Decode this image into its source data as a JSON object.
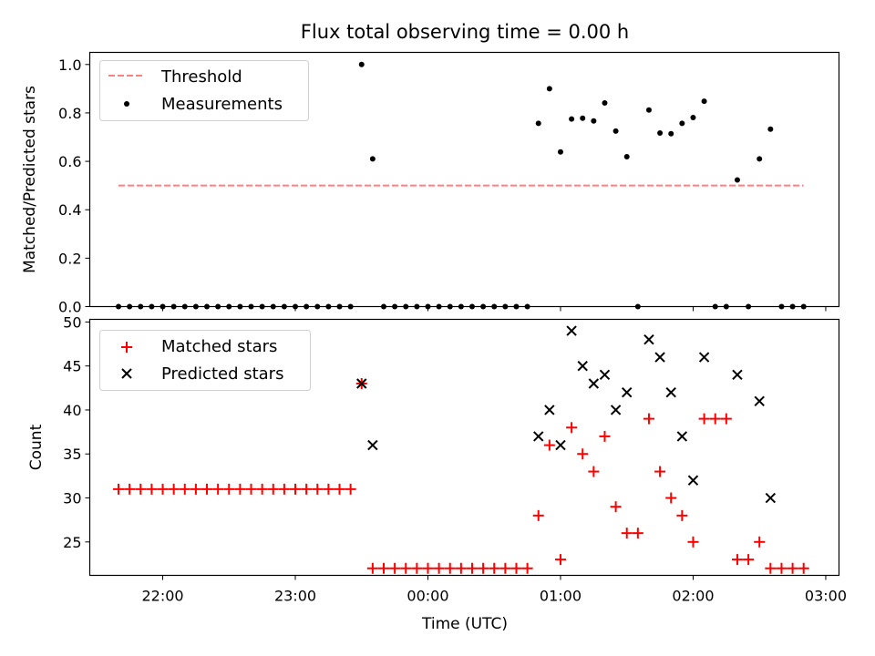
{
  "figure": {
    "title": "Flux total observing time = 0.00 h",
    "xlabel": "Time (UTC)"
  },
  "chart_data": [
    {
      "type": "scatter",
      "ylabel": "Matched/Predicted stars",
      "ylim": [
        0,
        1.05
      ],
      "yticks": [
        "0.0",
        "0.2",
        "0.4",
        "0.6",
        "0.8",
        "1.0"
      ],
      "legend": {
        "position": "top-left",
        "entries": [
          "Threshold",
          "Measurements"
        ]
      },
      "threshold": {
        "name": "Threshold",
        "y": 0.5,
        "x_start": "21:40",
        "x_end": "02:50",
        "color": "#ff7f7f"
      },
      "series": [
        {
          "name": "Measurements",
          "color": "#000000",
          "points": [
            [
              "21:40",
              0
            ],
            [
              "21:45",
              0
            ],
            [
              "21:50",
              0
            ],
            [
              "21:55",
              0
            ],
            [
              "22:00",
              0
            ],
            [
              "22:05",
              0
            ],
            [
              "22:10",
              0
            ],
            [
              "22:15",
              0
            ],
            [
              "22:20",
              0
            ],
            [
              "22:25",
              0
            ],
            [
              "22:30",
              0
            ],
            [
              "22:35",
              0
            ],
            [
              "22:40",
              0
            ],
            [
              "22:45",
              0
            ],
            [
              "22:50",
              0
            ],
            [
              "22:55",
              0
            ],
            [
              "23:00",
              0
            ],
            [
              "23:05",
              0
            ],
            [
              "23:10",
              0
            ],
            [
              "23:15",
              0
            ],
            [
              "23:20",
              0
            ],
            [
              "23:25",
              0
            ],
            [
              "23:30",
              1.0
            ],
            [
              "23:35",
              0.61
            ],
            [
              "23:40",
              0
            ],
            [
              "23:45",
              0
            ],
            [
              "23:50",
              0
            ],
            [
              "23:55",
              0
            ],
            [
              "00:00",
              0
            ],
            [
              "00:05",
              0
            ],
            [
              "00:10",
              0
            ],
            [
              "00:15",
              0
            ],
            [
              "00:20",
              0
            ],
            [
              "00:25",
              0
            ],
            [
              "00:30",
              0
            ],
            [
              "00:35",
              0
            ],
            [
              "00:40",
              0
            ],
            [
              "00:45",
              0
            ],
            [
              "00:50",
              0.757
            ],
            [
              "00:55",
              0.9
            ],
            [
              "01:00",
              0.639
            ],
            [
              "01:05",
              0.775
            ],
            [
              "01:10",
              0.778
            ],
            [
              "01:15",
              0.767
            ],
            [
              "01:20",
              0.841
            ],
            [
              "01:25",
              0.725
            ],
            [
              "01:30",
              0.619
            ],
            [
              "01:35",
              0
            ],
            [
              "01:40",
              0.812
            ],
            [
              "01:45",
              0.717
            ],
            [
              "01:50",
              0.714
            ],
            [
              "01:55",
              0.757
            ],
            [
              "02:00",
              0.781
            ],
            [
              "02:05",
              0.848
            ],
            [
              "02:10",
              0
            ],
            [
              "02:15",
              0
            ],
            [
              "02:20",
              0.523
            ],
            [
              "02:25",
              0
            ],
            [
              "02:30",
              0.61
            ],
            [
              "02:35",
              0.733
            ],
            [
              "02:40",
              0
            ],
            [
              "02:45",
              0
            ],
            [
              "02:50",
              0
            ]
          ]
        }
      ]
    },
    {
      "type": "scatter",
      "ylabel": "Count",
      "ylim": [
        21.2,
        50.3
      ],
      "yticks": [
        "25",
        "30",
        "35",
        "40",
        "45",
        "50"
      ],
      "xticks": [
        "22:00",
        "23:00",
        "00:00",
        "01:00",
        "02:00",
        "03:00"
      ],
      "xlim": [
        "21:27",
        "03:06"
      ],
      "legend": {
        "position": "top-left",
        "entries": [
          "Matched stars",
          "Predicted stars"
        ]
      },
      "series": [
        {
          "name": "Matched stars",
          "marker": "plus",
          "color": "#ff0000",
          "points": [
            [
              "21:40",
              31
            ],
            [
              "21:45",
              31
            ],
            [
              "21:50",
              31
            ],
            [
              "21:55",
              31
            ],
            [
              "22:00",
              31
            ],
            [
              "22:05",
              31
            ],
            [
              "22:10",
              31
            ],
            [
              "22:15",
              31
            ],
            [
              "22:20",
              31
            ],
            [
              "22:25",
              31
            ],
            [
              "22:30",
              31
            ],
            [
              "22:35",
              31
            ],
            [
              "22:40",
              31
            ],
            [
              "22:45",
              31
            ],
            [
              "22:50",
              31
            ],
            [
              "22:55",
              31
            ],
            [
              "23:00",
              31
            ],
            [
              "23:05",
              31
            ],
            [
              "23:10",
              31
            ],
            [
              "23:15",
              31
            ],
            [
              "23:20",
              31
            ],
            [
              "23:25",
              31
            ],
            [
              "23:30",
              43
            ],
            [
              "23:35",
              22
            ],
            [
              "23:40",
              22
            ],
            [
              "23:45",
              22
            ],
            [
              "23:50",
              22
            ],
            [
              "23:55",
              22
            ],
            [
              "00:00",
              22
            ],
            [
              "00:05",
              22
            ],
            [
              "00:10",
              22
            ],
            [
              "00:15",
              22
            ],
            [
              "00:20",
              22
            ],
            [
              "00:25",
              22
            ],
            [
              "00:30",
              22
            ],
            [
              "00:35",
              22
            ],
            [
              "00:40",
              22
            ],
            [
              "00:45",
              22
            ],
            [
              "00:50",
              28
            ],
            [
              "00:55",
              36
            ],
            [
              "01:00",
              23
            ],
            [
              "01:05",
              38
            ],
            [
              "01:10",
              35
            ],
            [
              "01:15",
              33
            ],
            [
              "01:20",
              37
            ],
            [
              "01:25",
              29
            ],
            [
              "01:30",
              26
            ],
            [
              "01:35",
              26
            ],
            [
              "01:40",
              39
            ],
            [
              "01:45",
              33
            ],
            [
              "01:50",
              30
            ],
            [
              "01:55",
              28
            ],
            [
              "02:00",
              25
            ],
            [
              "02:05",
              39
            ],
            [
              "02:10",
              39
            ],
            [
              "02:15",
              39
            ],
            [
              "02:20",
              23
            ],
            [
              "02:25",
              23
            ],
            [
              "02:30",
              25
            ],
            [
              "02:35",
              22
            ],
            [
              "02:40",
              22
            ],
            [
              "02:45",
              22
            ],
            [
              "02:50",
              22
            ]
          ]
        },
        {
          "name": "Predicted stars",
          "marker": "x",
          "color": "#000000",
          "points": [
            [
              "23:30",
              43
            ],
            [
              "23:35",
              36
            ],
            [
              "00:50",
              37
            ],
            [
              "00:55",
              40
            ],
            [
              "01:00",
              36
            ],
            [
              "01:05",
              49
            ],
            [
              "01:10",
              45
            ],
            [
              "01:15",
              43
            ],
            [
              "01:20",
              44
            ],
            [
              "01:25",
              40
            ],
            [
              "01:30",
              42
            ],
            [
              "01:40",
              48
            ],
            [
              "01:45",
              46
            ],
            [
              "01:50",
              42
            ],
            [
              "01:55",
              37
            ],
            [
              "02:00",
              32
            ],
            [
              "02:05",
              46
            ],
            [
              "02:20",
              44
            ],
            [
              "02:30",
              41
            ],
            [
              "02:35",
              30
            ]
          ]
        }
      ]
    }
  ]
}
